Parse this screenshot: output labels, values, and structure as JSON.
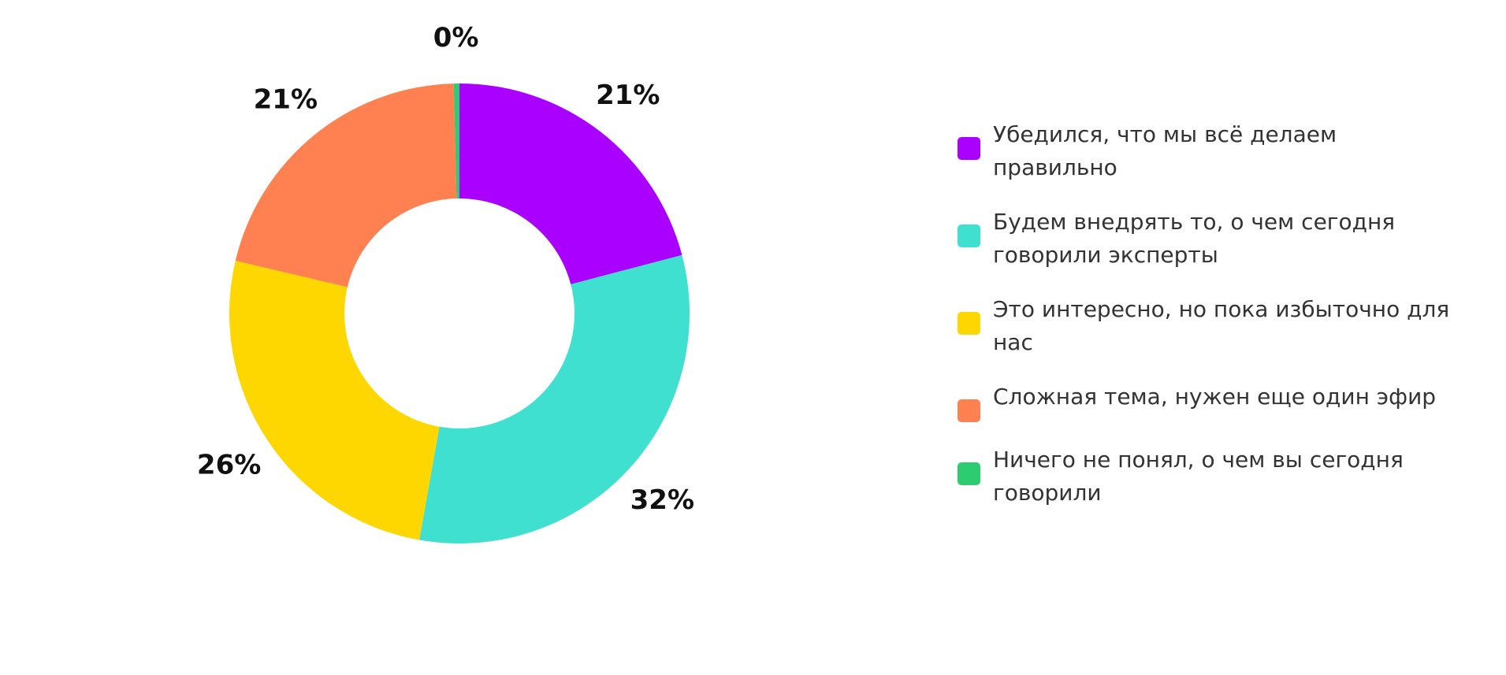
{
  "chart_data": {
    "type": "pie",
    "title": "",
    "donut": true,
    "legend_position": "right",
    "categories": [
      "Убедился, что мы всё делаем правильно",
      "Будем внедрять то, о чем сегодня говорили эксперты",
      "Это интересно, но пока избыточно для нас",
      "Сложная тема, нужен еще один эфир",
      "Ничего не понял, о чем вы сегодня говорили"
    ],
    "values": [
      21,
      32,
      26,
      21,
      0.4
    ],
    "data_labels": [
      "21%",
      "32%",
      "26%",
      "21%",
      "0%"
    ],
    "colors": [
      "#aa00ff",
      "#40e0d0",
      "#ffd700",
      "#ff8050",
      "#2ecc71"
    ]
  }
}
